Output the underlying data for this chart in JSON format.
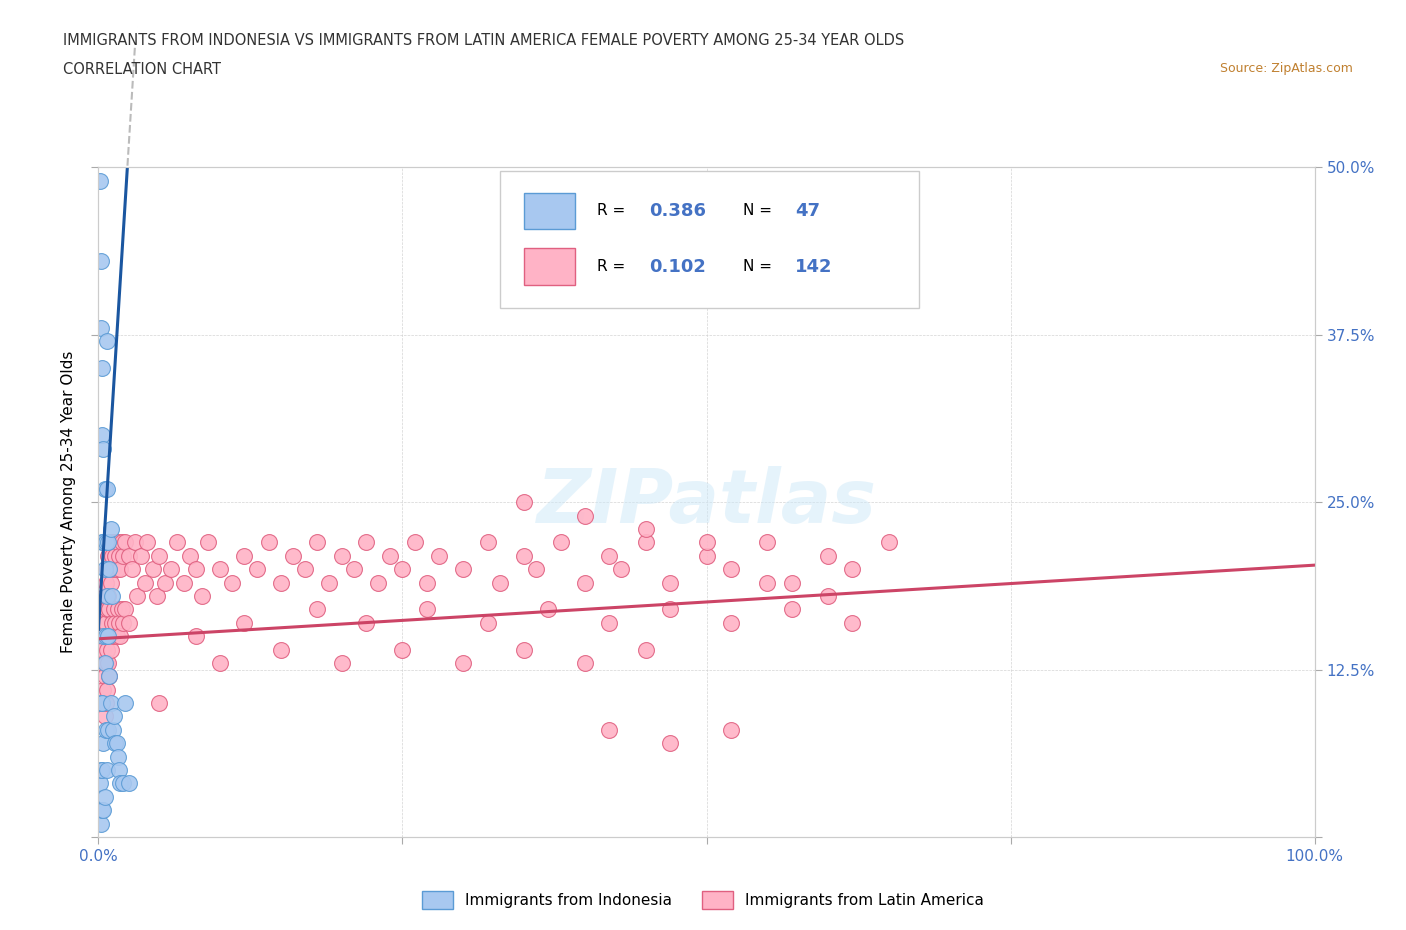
{
  "title_line1": "IMMIGRANTS FROM INDONESIA VS IMMIGRANTS FROM LATIN AMERICA FEMALE POVERTY AMONG 25-34 YEAR OLDS",
  "title_line2": "CORRELATION CHART",
  "source_text": "Source: ZipAtlas.com",
  "ylabel": "Female Poverty Among 25-34 Year Olds",
  "xlim": [
    0.0,
    1.0
  ],
  "ylim": [
    0.0,
    0.5
  ],
  "xtick_positions": [
    0.0,
    0.25,
    0.5,
    0.75,
    1.0
  ],
  "xticklabels": [
    "0.0%",
    "",
    "",
    "",
    "100.0%"
  ],
  "ytick_positions": [
    0.0,
    0.125,
    0.25,
    0.375,
    0.5
  ],
  "yticklabels_right": [
    "",
    "12.5%",
    "25.0%",
    "37.5%",
    "50.0%"
  ],
  "tick_color": "#4472c4",
  "watermark": "ZIPatlas",
  "indonesia_face": "#a8c8f0",
  "indonesia_edge": "#5b9bd5",
  "latin_face": "#ffb3c6",
  "latin_edge": "#e06080",
  "line_indonesia": "#1a56a0",
  "line_latin": "#cc4466",
  "indo_line_intercept": 0.155,
  "indo_line_slope": 14.5,
  "latin_line_intercept": 0.148,
  "latin_line_slope": 0.055,
  "indonesia_x": [
    0.001,
    0.001,
    0.002,
    0.002,
    0.002,
    0.002,
    0.002,
    0.003,
    0.003,
    0.003,
    0.003,
    0.003,
    0.003,
    0.004,
    0.004,
    0.004,
    0.004,
    0.004,
    0.005,
    0.005,
    0.005,
    0.005,
    0.006,
    0.006,
    0.006,
    0.007,
    0.007,
    0.007,
    0.007,
    0.008,
    0.008,
    0.008,
    0.009,
    0.009,
    0.01,
    0.01,
    0.011,
    0.012,
    0.013,
    0.014,
    0.015,
    0.016,
    0.017,
    0.018,
    0.02,
    0.022,
    0.025
  ],
  "indonesia_y": [
    0.49,
    0.04,
    0.43,
    0.38,
    0.1,
    0.05,
    0.01,
    0.35,
    0.3,
    0.22,
    0.1,
    0.05,
    0.02,
    0.29,
    0.22,
    0.15,
    0.07,
    0.02,
    0.26,
    0.2,
    0.13,
    0.03,
    0.22,
    0.15,
    0.08,
    0.37,
    0.26,
    0.18,
    0.05,
    0.22,
    0.15,
    0.08,
    0.2,
    0.12,
    0.23,
    0.1,
    0.18,
    0.08,
    0.09,
    0.07,
    0.07,
    0.06,
    0.05,
    0.04,
    0.04,
    0.1,
    0.04
  ],
  "latin_x": [
    0.002,
    0.003,
    0.003,
    0.003,
    0.004,
    0.004,
    0.004,
    0.005,
    0.005,
    0.005,
    0.005,
    0.006,
    0.006,
    0.006,
    0.006,
    0.007,
    0.007,
    0.007,
    0.007,
    0.008,
    0.008,
    0.008,
    0.009,
    0.009,
    0.009,
    0.01,
    0.01,
    0.01,
    0.011,
    0.011,
    0.012,
    0.012,
    0.013,
    0.013,
    0.014,
    0.014,
    0.015,
    0.015,
    0.016,
    0.016,
    0.017,
    0.017,
    0.018,
    0.018,
    0.019,
    0.019,
    0.02,
    0.02,
    0.022,
    0.022,
    0.025,
    0.025,
    0.028,
    0.03,
    0.032,
    0.035,
    0.038,
    0.04,
    0.045,
    0.048,
    0.05,
    0.055,
    0.06,
    0.065,
    0.07,
    0.075,
    0.08,
    0.085,
    0.09,
    0.1,
    0.11,
    0.12,
    0.13,
    0.14,
    0.15,
    0.16,
    0.17,
    0.18,
    0.19,
    0.2,
    0.21,
    0.22,
    0.23,
    0.24,
    0.25,
    0.26,
    0.27,
    0.28,
    0.3,
    0.32,
    0.33,
    0.35,
    0.36,
    0.38,
    0.4,
    0.42,
    0.43,
    0.45,
    0.47,
    0.5,
    0.52,
    0.55,
    0.57,
    0.6,
    0.62,
    0.65,
    0.35,
    0.4,
    0.45,
    0.5,
    0.55,
    0.6,
    0.1,
    0.15,
    0.2,
    0.25,
    0.3,
    0.35,
    0.4,
    0.45,
    0.05,
    0.08,
    0.12,
    0.18,
    0.22,
    0.27,
    0.32,
    0.37,
    0.42,
    0.47,
    0.52,
    0.57,
    0.62,
    0.42,
    0.47,
    0.52
  ],
  "latin_y": [
    0.14,
    0.16,
    0.13,
    0.1,
    0.17,
    0.14,
    0.11,
    0.18,
    0.15,
    0.12,
    0.09,
    0.19,
    0.16,
    0.13,
    0.1,
    0.2,
    0.17,
    0.14,
    0.11,
    0.21,
    0.18,
    0.13,
    0.2,
    0.17,
    0.12,
    0.22,
    0.19,
    0.14,
    0.21,
    0.16,
    0.2,
    0.15,
    0.22,
    0.17,
    0.21,
    0.16,
    0.2,
    0.15,
    0.22,
    0.17,
    0.21,
    0.16,
    0.2,
    0.15,
    0.22,
    0.17,
    0.21,
    0.16,
    0.22,
    0.17,
    0.21,
    0.16,
    0.2,
    0.22,
    0.18,
    0.21,
    0.19,
    0.22,
    0.2,
    0.18,
    0.21,
    0.19,
    0.2,
    0.22,
    0.19,
    0.21,
    0.2,
    0.18,
    0.22,
    0.2,
    0.19,
    0.21,
    0.2,
    0.22,
    0.19,
    0.21,
    0.2,
    0.22,
    0.19,
    0.21,
    0.2,
    0.22,
    0.19,
    0.21,
    0.2,
    0.22,
    0.19,
    0.21,
    0.2,
    0.22,
    0.19,
    0.21,
    0.2,
    0.22,
    0.19,
    0.21,
    0.2,
    0.22,
    0.19,
    0.21,
    0.2,
    0.22,
    0.19,
    0.21,
    0.2,
    0.22,
    0.25,
    0.24,
    0.23,
    0.22,
    0.19,
    0.18,
    0.13,
    0.14,
    0.13,
    0.14,
    0.13,
    0.14,
    0.13,
    0.14,
    0.1,
    0.15,
    0.16,
    0.17,
    0.16,
    0.17,
    0.16,
    0.17,
    0.16,
    0.17,
    0.16,
    0.17,
    0.16,
    0.08,
    0.07,
    0.08
  ]
}
